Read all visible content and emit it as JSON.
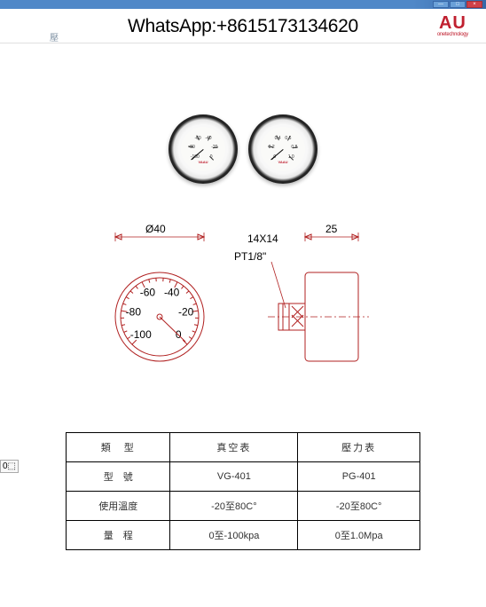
{
  "titlebar": {
    "min": "—",
    "max": "□",
    "close": "×"
  },
  "header": {
    "whatsapp": "WhatsApp:+8615173134620",
    "brand_main": "AU",
    "brand_sub": "onetechnology",
    "tab": "壓"
  },
  "gauges": {
    "left": {
      "brand": "VAAU",
      "numbers": [
        "-100",
        "-80",
        "-60",
        "-40",
        "-20",
        "0"
      ],
      "unit": "kPa",
      "needle_angle": 50
    },
    "right": {
      "brand": "VAAU",
      "numbers": [
        "0",
        "0.2",
        "0.4",
        "0.6",
        "0.8",
        "1.0"
      ],
      "unit": "MPa",
      "needle_angle": 50
    }
  },
  "diagram": {
    "diameter_label": "Ø40",
    "conn_label1": "14X14",
    "conn_label2": "PT1/8\"",
    "depth_label": "25",
    "dial_numbers": [
      "-100",
      "-80",
      "-60",
      "-40",
      "-20",
      "0"
    ]
  },
  "table": {
    "headers": [
      "類　型",
      "真空表",
      "壓力表"
    ],
    "rows": [
      {
        "label": "型　號",
        "c1": "VG-401",
        "c2": "PG-401"
      },
      {
        "label": "使用溫度",
        "c1": "-20至80C°",
        "c2": "-20至80C°"
      },
      {
        "label": "量　程",
        "c1": "0至-100kpa",
        "c2": "0至1.0Mpa"
      }
    ]
  },
  "edge_marker": "0⬚"
}
